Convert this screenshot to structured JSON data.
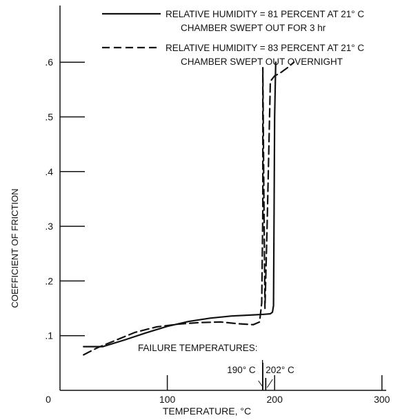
{
  "chart_data": {
    "type": "line",
    "title": "",
    "xlabel": "TEMPERATURE, °C",
    "ylabel": "COEFFICIENT OF FRICTION",
    "xlim": [
      0,
      300
    ],
    "ylim": [
      0,
      0.7
    ],
    "x_ticks": [
      0,
      100,
      200,
      300
    ],
    "x_tick_labels": [
      "0",
      "100",
      "200",
      "300"
    ],
    "y_ticks": [
      0.1,
      0.2,
      0.3,
      0.4,
      0.5,
      0.6
    ],
    "y_tick_labels": [
      ".1",
      ".2",
      ".3",
      ".4",
      ".5",
      ".6"
    ],
    "grid": false,
    "legend_position": "top-right",
    "series": [
      {
        "name": "RELATIVE HUMIDITY = 81 PERCENT AT 21° C CHAMBER SWEPT OUT FOR 3 hr",
        "legend_lines": [
          "RELATIVE HUMIDITY = 81 PERCENT AT 21° C",
          "CHAMBER SWEPT OUT FOR 3 hr"
        ],
        "style": "solid",
        "color": "#111111",
        "x": [
          22,
          40,
          60,
          80,
          100,
          120,
          140,
          160,
          180,
          190,
          196,
          198,
          199,
          199.5,
          200,
          201
        ],
        "y": [
          0.08,
          0.08,
          0.092,
          0.105,
          0.117,
          0.126,
          0.132,
          0.136,
          0.138,
          0.139,
          0.14,
          0.143,
          0.155,
          0.32,
          0.5,
          0.6
        ]
      },
      {
        "name": "RELATIVE HUMIDITY = 83 PERCENT AT 21° C CHAMBER SWEPT OUT OVERNIGHT",
        "legend_lines": [
          "RELATIVE HUMIDITY = 83 PERCENT AT 21° C",
          "CHAMBER SWEPT OUT OVERNIGHT"
        ],
        "style": "dashed",
        "color": "#111111",
        "x": [
          22,
          35,
          50,
          70,
          90,
          110,
          130,
          150,
          165,
          180,
          186,
          188,
          189,
          189,
          190,
          191,
          193,
          196,
          200,
          205,
          212,
          218
        ],
        "y": [
          0.065,
          0.078,
          0.09,
          0.106,
          0.116,
          0.121,
          0.124,
          0.125,
          0.122,
          0.12,
          0.125,
          0.16,
          0.33,
          0.59,
          0.36,
          0.15,
          0.3,
          0.565,
          0.575,
          0.58,
          0.59,
          0.6
        ]
      }
    ],
    "annotations": {
      "header": "FAILURE TEMPERATURES:",
      "markers": [
        {
          "label": "190° C",
          "x": 190
        },
        {
          "label": "202° C",
          "x": 202
        }
      ]
    }
  }
}
